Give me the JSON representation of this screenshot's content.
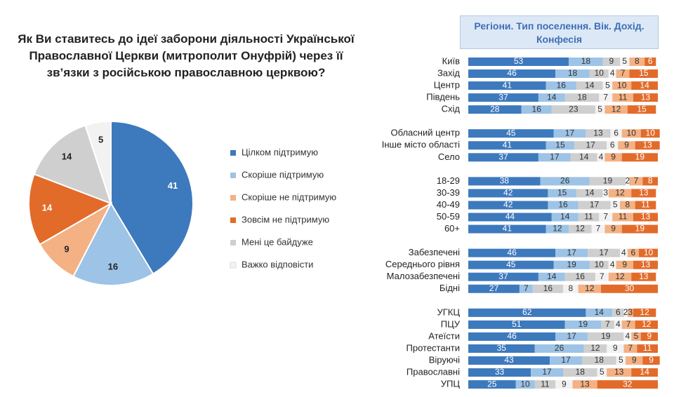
{
  "chart_data": [
    {
      "type": "pie",
      "title": "Як Ви ставитесь до ідеї заборони діяльності Української Православної Церкви (митрополит Онуфрій) через її зв’язки з російською православною церквою?",
      "categories": [
        "Цілком підтримую",
        "Скоріше підтримую",
        "Скоріше не підтримую",
        "Зовсім не підтримую",
        "Мені це байдуже",
        "Важко відповісти"
      ],
      "values": [
        41,
        16,
        9,
        14,
        14,
        5
      ],
      "colors": [
        "#3d79bd",
        "#9dc3e6",
        "#f4b183",
        "#e26b2a",
        "#cfcfcf",
        "#f2f2f2"
      ]
    },
    {
      "type": "bar",
      "orientation": "horizontal",
      "stacked": true,
      "title": "Регіони. Тип поселення. Вік. Дохід. Конфесія",
      "categories": [
        "Київ",
        "Захід",
        "Центр",
        "Південь",
        "Схід",
        null,
        "Обласний центр",
        "Інше місто області",
        "Село",
        null,
        "18-29",
        "30-39",
        "40-49",
        "50-59",
        "60+",
        null,
        "Забезпечені",
        "Середнього рівня",
        "Малозабезпечені",
        "Бідні",
        null,
        "УГКЦ",
        "ПЦУ",
        "Атеїсти",
        "Протестанти",
        "Віруючі",
        "Православні",
        "УПЦ"
      ],
      "xlim": [
        0,
        100
      ],
      "series": [
        {
          "color": "#3d79bd",
          "values": [
            53,
            46,
            41,
            37,
            28,
            null,
            45,
            41,
            37,
            null,
            38,
            42,
            42,
            44,
            41,
            null,
            46,
            45,
            37,
            27,
            null,
            62,
            51,
            46,
            35,
            43,
            33,
            25
          ]
        },
        {
          "color": "#9dc3e6",
          "values": [
            18,
            18,
            16,
            14,
            16,
            null,
            17,
            15,
            17,
            null,
            26,
            15,
            16,
            14,
            12,
            null,
            17,
            19,
            14,
            7,
            null,
            14,
            19,
            17,
            26,
            17,
            17,
            10
          ]
        },
        {
          "color": "#cfcfcf",
          "values": [
            9,
            10,
            14,
            18,
            23,
            null,
            13,
            17,
            14,
            null,
            19,
            14,
            17,
            11,
            12,
            null,
            17,
            10,
            16,
            16,
            null,
            6,
            7,
            19,
            12,
            18,
            18,
            11
          ]
        },
        {
          "color": "#f2f2f2",
          "values": [
            5,
            4,
            5,
            7,
            5,
            null,
            6,
            6,
            4,
            null,
            2,
            3,
            5,
            7,
            7,
            null,
            4,
            4,
            7,
            8,
            null,
            2,
            4,
            4,
            9,
            5,
            5,
            9
          ]
        },
        {
          "color": "#f4b183",
          "values": [
            8,
            7,
            10,
            11,
            12,
            null,
            10,
            9,
            9,
            null,
            7,
            12,
            8,
            11,
            9,
            null,
            6,
            9,
            12,
            12,
            null,
            3,
            7,
            5,
            7,
            9,
            13,
            13
          ]
        },
        {
          "color": "#e26b2a",
          "values": [
            6,
            15,
            14,
            13,
            15,
            null,
            10,
            13,
            19,
            null,
            8,
            13,
            11,
            13,
            19,
            null,
            10,
            13,
            13,
            30,
            null,
            12,
            12,
            9,
            11,
            9,
            14,
            32
          ]
        }
      ]
    }
  ]
}
